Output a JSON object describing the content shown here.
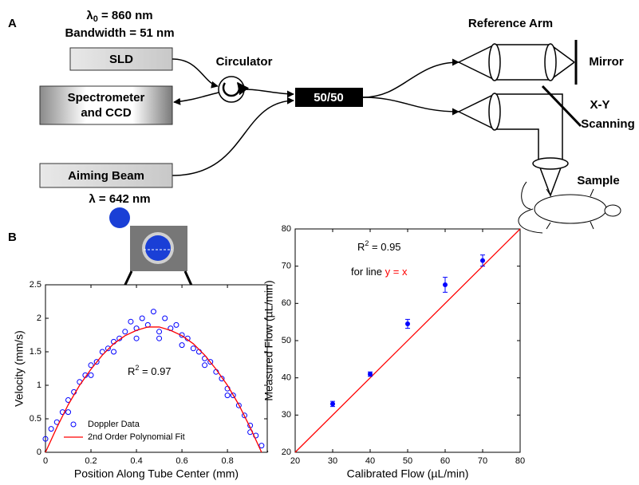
{
  "diagram": {
    "panel_a": "A",
    "source": {
      "symbol": "λ",
      "sub": "0",
      "rest": " = 860 nm"
    },
    "bandwidth": "Bandwidth = 51 nm",
    "sld": "SLD",
    "spectrometer": [
      "Spectrometer",
      "and CCD"
    ],
    "circulator": "Circulator",
    "coupler": "50/50",
    "reference_arm": "Reference Arm",
    "mirror": "Mirror",
    "scanning": [
      "X-Y",
      "Scanning"
    ],
    "sample": "Sample",
    "aiming_beam": "Aiming Beam",
    "aiming_wavelength": "λ = 642 nm",
    "panel_b": "B"
  },
  "chart_data": [
    {
      "type": "scatter",
      "xlabel": "Position Along Tube Center (mm)",
      "ylabel": "Velocity (mm/s)",
      "xlim": [
        0,
        0.975
      ],
      "xticks": [
        0,
        0.2,
        0.4,
        0.6,
        0.8
      ],
      "ylim": [
        0,
        2.5
      ],
      "yticks": [
        0,
        0.5,
        1,
        1.5,
        2,
        2.5
      ],
      "legend": "lower left",
      "annotations": [
        {
          "base": "R",
          "sup": "2",
          "rest": " = 0.97"
        }
      ],
      "series": [
        {
          "name": "Doppler Data",
          "color": "#0000ff",
          "style": "open-markers",
          "x": [
            0,
            0.025,
            0.05,
            0.075,
            0.1,
            0.125,
            0.15,
            0.175,
            0.2,
            0.225,
            0.25,
            0.275,
            0.3,
            0.325,
            0.35,
            0.375,
            0.4,
            0.425,
            0.45,
            0.475,
            0.5,
            0.525,
            0.55,
            0.575,
            0.6,
            0.625,
            0.65,
            0.675,
            0.7,
            0.725,
            0.75,
            0.775,
            0.8,
            0.825,
            0.85,
            0.875,
            0.9,
            0.925,
            0.95,
            0.1,
            0.2,
            0.3,
            0.4,
            0.5,
            0.6,
            0.7,
            0.8,
            0.9
          ],
          "values": [
            0.2,
            0.35,
            0.45,
            0.6,
            0.78,
            0.9,
            1.05,
            1.15,
            1.3,
            1.35,
            1.5,
            1.55,
            1.65,
            1.7,
            1.8,
            1.95,
            1.85,
            2.0,
            1.9,
            2.1,
            1.8,
            2.0,
            1.85,
            1.9,
            1.75,
            1.7,
            1.55,
            1.5,
            1.4,
            1.35,
            1.2,
            1.1,
            0.95,
            0.85,
            0.7,
            0.55,
            0.4,
            0.25,
            0.1,
            0.6,
            1.15,
            1.5,
            1.7,
            1.7,
            1.6,
            1.3,
            0.85,
            0.3
          ]
        },
        {
          "name": "2nd Order Polynomial Fit",
          "color": "#ff0000",
          "style": "line",
          "x": [
            0,
            0.05,
            0.1,
            0.15,
            0.2,
            0.25,
            0.3,
            0.35,
            0.4,
            0.45,
            0.5,
            0.55,
            0.6,
            0.65,
            0.7,
            0.75,
            0.8,
            0.85,
            0.9,
            0.95
          ],
          "values": [
            0,
            0.37,
            0.71,
            1.0,
            1.24,
            1.45,
            1.62,
            1.74,
            1.82,
            1.87,
            1.87,
            1.82,
            1.74,
            1.62,
            1.45,
            1.24,
            1.0,
            0.71,
            0.37,
            0
          ]
        }
      ]
    },
    {
      "type": "scatter",
      "xlabel": "Calibrated Flow (µL/min)",
      "ylabel": "Measured Flow (µL/min)",
      "xlim": [
        20,
        80
      ],
      "xticks": [
        20,
        30,
        40,
        50,
        60,
        70,
        80
      ],
      "ylim": [
        20,
        80
      ],
      "yticks": [
        20,
        30,
        40,
        50,
        60,
        70,
        80
      ],
      "annotations": [
        {
          "base": "R",
          "sup": "2",
          "rest": " = 0.95"
        },
        {
          "text": "for line ",
          "highlight": "y = x",
          "highlight_color": "#ff0000"
        }
      ],
      "series": [
        {
          "color": "#ff0000",
          "style": "line",
          "x": [
            20,
            80
          ],
          "values": [
            20,
            80
          ]
        },
        {
          "color": "#0000ff",
          "style": "error-markers",
          "x": [
            30,
            40,
            50,
            60,
            70
          ],
          "values": [
            33,
            41,
            54.5,
            65,
            71.5
          ],
          "errors": [
            0.7,
            0.6,
            1.2,
            2,
            1.5
          ]
        }
      ]
    }
  ]
}
